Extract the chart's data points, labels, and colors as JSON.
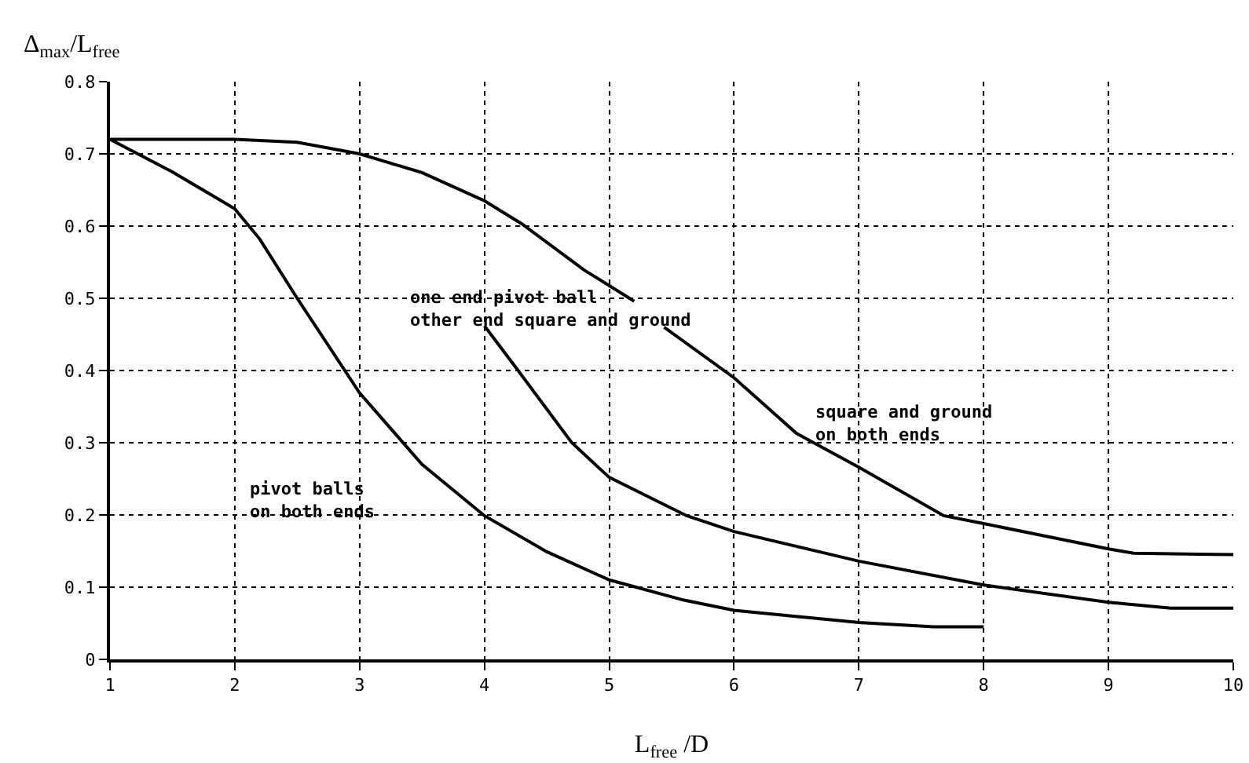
{
  "chart_data": {
    "type": "line",
    "xlabel": "L$_{free}$ /D",
    "ylabel": "Δ$_{max}$/L$_{free}$",
    "x": [
      1,
      2,
      2.5,
      3,
      3.5,
      4,
      4.3,
      4.8,
      5.2,
      5.3,
      5.44,
      6,
      6.5,
      7,
      7.68,
      8,
      9,
      9.2,
      10
    ],
    "series": [
      {
        "color": "#000000",
        "values": [
          0.72,
          0.72,
          0.716,
          0.7,
          0.674,
          0.635,
          0.603,
          0.539,
          0.496,
          null,
          0.46,
          0.39,
          0.313,
          0.266,
          0.199,
          0.188,
          0.153,
          0.147,
          0.145
        ]
      },
      {
        "color": "#000000",
        "x": [
          4,
          4.27,
          4.7,
          5,
          5.62,
          6,
          7,
          8,
          9,
          9.5,
          10
        ],
        "values": [
          0.462,
          0.4,
          0.3,
          0.252,
          0.199,
          0.177,
          0.136,
          0.103,
          0.079,
          0.071,
          0.071
        ]
      },
      {
        "color": "#000000",
        "x": [
          1,
          1.5,
          2,
          2.2,
          2.5,
          3,
          3.5,
          4,
          4.5,
          5,
          5.6,
          6,
          7,
          7.6,
          8
        ],
        "values": [
          0.72,
          0.675,
          0.624,
          0.582,
          0.5,
          0.369,
          0.27,
          0.199,
          0.149,
          0.11,
          0.082,
          0.068,
          0.051,
          0.045,
          0.045
        ]
      }
    ],
    "xlim": [
      1,
      10
    ],
    "xticks": [
      1,
      2,
      3,
      4,
      5,
      6,
      7,
      8,
      9,
      10
    ],
    "ylim": [
      0,
      0.8
    ],
    "yticks": [
      0,
      0.1,
      0.2,
      0.3,
      0.4,
      0.5,
      0.6,
      0.7,
      0.8
    ],
    "grid": true,
    "marker": "none",
    "line_style": "solid",
    "annotations": [
      "one end pivot ball\nother end square and ground",
      "square and ground\non both ends",
      "pivot balls\non both ends"
    ]
  }
}
